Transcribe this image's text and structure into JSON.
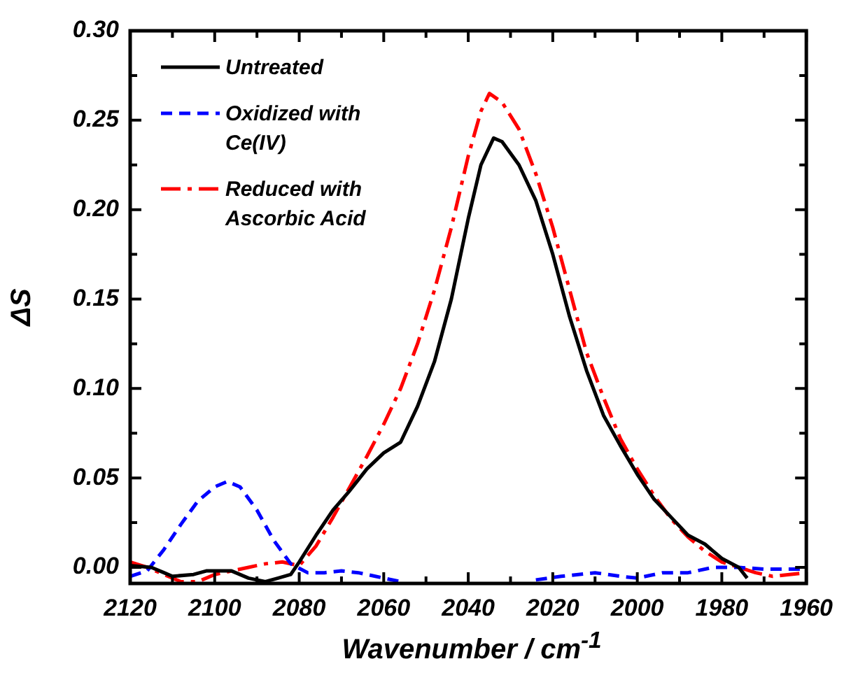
{
  "chart_data": {
    "type": "line",
    "xlabel": "Wavenumber / cm$^{-1}$",
    "ylabel": "ΔS",
    "xlim": [
      2120,
      1960
    ],
    "xticks": [
      2120,
      {
        "value": 2110,
        "label": null
      },
      2100,
      {
        "value": 2090,
        "label": null
      },
      2080,
      {
        "value": 2070,
        "label": null
      },
      2060,
      {
        "value": 2050,
        "label": null
      },
      2040,
      {
        "value": 2030,
        "label": null
      },
      2020,
      {
        "value": 2010,
        "label": null
      },
      2000,
      {
        "value": 1990,
        "label": null
      },
      1980,
      {
        "value": 1970,
        "label": null
      },
      1960
    ],
    "ylim": [
      -0.009,
      0.3
    ],
    "yticks": [
      {
        "value": 0,
        "label": "0.00"
      },
      {
        "value": 0.025,
        "label": null
      },
      {
        "value": 0.05,
        "label": "0.05"
      },
      {
        "value": 0.075,
        "label": null
      },
      {
        "value": 0.1,
        "label": "0.10"
      },
      {
        "value": 0.125,
        "label": null
      },
      {
        "value": 0.15,
        "label": "0.15"
      },
      {
        "value": 0.175,
        "label": null
      },
      {
        "value": 0.2,
        "label": "0.20"
      },
      {
        "value": 0.225,
        "label": null
      },
      {
        "value": 0.25,
        "label": "0.25"
      },
      {
        "value": 0.275,
        "label": null
      },
      {
        "value": 0.3,
        "label": "0.30"
      }
    ],
    "legend": "top left",
    "marker": "none",
    "grid": false,
    "series": [
      {
        "name": "Untreated",
        "color": "#000000",
        "line_style": "solid",
        "x": [
          2120,
          2115,
          2112,
          2110,
          2105,
          2102,
          2098,
          2096,
          2092,
          2088,
          2085,
          2082,
          2080,
          2076,
          2072,
          2068,
          2064,
          2060,
          2056,
          2052,
          2048,
          2044,
          2040,
          2037,
          2034,
          2032,
          2028,
          2024,
          2020,
          2016,
          2012,
          2008,
          2004,
          2000,
          1996,
          1992,
          1988,
          1984,
          1980,
          1976,
          1974
        ],
        "values": [
          0.001,
          0,
          -0.003,
          -0.005,
          -0.004,
          -0.002,
          -0.002,
          -0.002,
          -0.006,
          -0.008,
          -0.006,
          -0.004,
          0.003,
          0.018,
          0.032,
          0.043,
          0.055,
          0.064,
          0.07,
          0.09,
          0.115,
          0.15,
          0.195,
          0.225,
          0.24,
          0.238,
          0.225,
          0.205,
          0.175,
          0.14,
          0.11,
          0.085,
          0.068,
          0.052,
          0.038,
          0.028,
          0.018,
          0.013,
          0.005,
          0,
          -0.006
        ]
      },
      {
        "name": "Oxidized with Ce(IV)",
        "color": "#0000ff",
        "line_style": "dashed",
        "x": [
          2120,
          2116,
          2112,
          2108,
          2104,
          2100,
          2097,
          2094,
          2090,
          2086,
          2082,
          2078,
          2074,
          2070,
          2066,
          2062,
          2056,
          2050,
          2030,
          2024,
          2018,
          2010,
          2004,
          2000,
          1994,
          1988,
          1982,
          1976,
          1970,
          1960
        ],
        "values": [
          -0.005,
          -0.002,
          0.01,
          0.024,
          0.037,
          0.045,
          0.048,
          0.045,
          0.032,
          0.015,
          0.002,
          -0.003,
          -0.003,
          -0.002,
          -0.003,
          -0.005,
          -0.008,
          null,
          null,
          -0.007,
          -0.005,
          -0.003,
          -0.005,
          -0.006,
          -0.003,
          -0.003,
          0,
          0,
          -0.001,
          -0.001
        ]
      },
      {
        "name": "Reduced with Ascorbic Acid",
        "color": "#ff0000",
        "line_style": "dashdot",
        "x": [
          2120,
          2116,
          2112,
          2108,
          2104,
          2100,
          2096,
          2092,
          2088,
          2084,
          2080,
          2076,
          2072,
          2068,
          2064,
          2060,
          2056,
          2052,
          2048,
          2044,
          2040,
          2037,
          2035,
          2032,
          2028,
          2024,
          2020,
          2016,
          2012,
          2008,
          2004,
          2000,
          1996,
          1992,
          1988,
          1984,
          1980,
          1976,
          1972,
          1968,
          1964,
          1960
        ],
        "values": [
          0.003,
          0,
          -0.004,
          -0.008,
          -0.008,
          -0.004,
          -0.002,
          0,
          0.002,
          0.003,
          0.001,
          0.012,
          0.028,
          0.045,
          0.062,
          0.08,
          0.1,
          0.125,
          0.155,
          0.19,
          0.23,
          0.255,
          0.265,
          0.26,
          0.245,
          0.22,
          0.19,
          0.155,
          0.12,
          0.095,
          0.072,
          0.055,
          0.04,
          0.027,
          0.017,
          0.009,
          0.003,
          0,
          -0.003,
          -0.005,
          -0.004,
          -0.003
        ]
      }
    ]
  }
}
